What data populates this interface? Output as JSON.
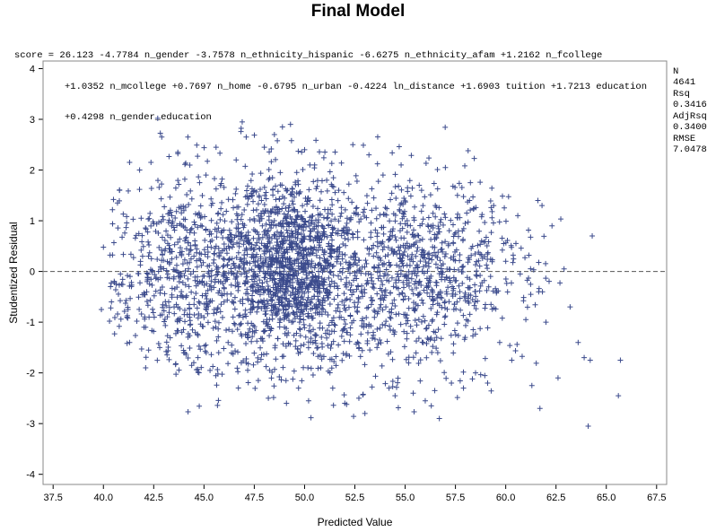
{
  "title": "Final Model",
  "equation": [
    "score = 26.123 -4.7784 n_gender -3.7578 n_ethnicity_hispanic -6.6275 n_ethnicity_afam +1.2162 n_fcollege",
    "+1.0352 n_mcollege +0.7697 n_home -0.6795 n_urban -0.4224 ln_distance +1.6903 tuition +1.7213 education",
    "+0.4298 n_gender_education"
  ],
  "stats": [
    {
      "label": "N",
      "value": "4641"
    },
    {
      "label": "Rsq",
      "value": "0.3416"
    },
    {
      "label": "AdjRsq",
      "value": "0.3400"
    },
    {
      "label": "RMSE",
      "value": "7.0478"
    }
  ],
  "colors": {
    "points": "#3b4a8c",
    "refline": "#555555",
    "frame": "#888888"
  },
  "chart_data": {
    "type": "scatter",
    "marker": "plus",
    "title": "Final Model",
    "xlabel": "Predicted Value",
    "ylabel": "Studentized Residual",
    "xlim": [
      37.0,
      68.0
    ],
    "ylim": [
      -4.2,
      4.15
    ],
    "xticks": [
      "37.5",
      "40.0",
      "42.5",
      "45.0",
      "47.5",
      "50.0",
      "52.5",
      "55.0",
      "57.5",
      "60.0",
      "62.5",
      "65.0",
      "67.5"
    ],
    "yticks": [
      "4",
      "3",
      "2",
      "1",
      "0",
      "-1",
      "-2",
      "-3",
      "-4"
    ],
    "reference_line": {
      "y": 0,
      "style": "dashed"
    },
    "n_points": 4641,
    "points": [
      [
        39.9,
        -0.75
      ],
      [
        40.0,
        0.48
      ],
      [
        40.4,
        -0.6
      ],
      [
        40.7,
        1.35
      ],
      [
        40.8,
        1.6
      ],
      [
        40.9,
        -0.25
      ],
      [
        41.3,
        2.15
      ],
      [
        41.3,
        -1.4
      ],
      [
        41.8,
        2.0
      ],
      [
        42.1,
        -1.9
      ],
      [
        42.7,
        3.02
      ],
      [
        42.8,
        -1.5
      ],
      [
        42.9,
        2.65
      ],
      [
        43.2,
        -0.05
      ],
      [
        43.4,
        1.1
      ],
      [
        43.7,
        2.35
      ],
      [
        43.9,
        -1.2
      ],
      [
        44.2,
        2.65
      ],
      [
        44.5,
        0.3
      ],
      [
        44.7,
        -1.7
      ],
      [
        45.1,
        1.9
      ],
      [
        45.3,
        -1.95
      ],
      [
        45.6,
        2.45
      ],
      [
        45.9,
        0.8
      ],
      [
        46.2,
        -1.4
      ],
      [
        46.6,
        2.2
      ],
      [
        46.9,
        2.95
      ],
      [
        47.1,
        -1.8
      ],
      [
        47.4,
        1.5
      ],
      [
        47.7,
        -2.15
      ],
      [
        48.0,
        2.45
      ],
      [
        48.2,
        -2.5
      ],
      [
        48.5,
        2.7
      ],
      [
        48.7,
        -0.3
      ],
      [
        48.9,
        2.85
      ],
      [
        49.1,
        -2.6
      ],
      [
        49.3,
        2.9
      ],
      [
        49.5,
        1.2
      ],
      [
        49.7,
        -2.3
      ],
      [
        50.0,
        2.4
      ],
      [
        50.2,
        -2.55
      ],
      [
        50.5,
        2.1
      ],
      [
        50.8,
        -1.9
      ],
      [
        51.1,
        1.8
      ],
      [
        51.4,
        -2.3
      ],
      [
        51.7,
        1.6
      ],
      [
        52.0,
        -2.6
      ],
      [
        52.4,
        2.5
      ],
      [
        52.7,
        -2.5
      ],
      [
        53.0,
        -2.8
      ],
      [
        53.2,
        2.3
      ],
      [
        53.6,
        -1.5
      ],
      [
        53.9,
        1.9
      ],
      [
        54.2,
        -2.3
      ],
      [
        54.5,
        -2.45
      ],
      [
        54.8,
        2.1
      ],
      [
        55.1,
        1.0
      ],
      [
        55.4,
        -2.4
      ],
      [
        55.7,
        1.7
      ],
      [
        56.0,
        -2.55
      ],
      [
        56.3,
        -2.65
      ],
      [
        56.5,
        1.3
      ],
      [
        56.7,
        -2.9
      ],
      [
        57.0,
        2.05
      ],
      [
        57.3,
        -2.2
      ],
      [
        57.6,
        1.5
      ],
      [
        57.9,
        -2.3
      ],
      [
        58.2,
        1.4
      ],
      [
        58.5,
        -2.0
      ],
      [
        58.8,
        0.6
      ],
      [
        59.1,
        -2.2
      ],
      [
        59.4,
        1.3
      ],
      [
        59.7,
        -1.4
      ],
      [
        60.0,
        0.2
      ],
      [
        60.3,
        -1.75
      ],
      [
        60.6,
        1.1
      ],
      [
        61.0,
        -0.95
      ],
      [
        61.3,
        -2.25
      ],
      [
        61.6,
        1.4
      ],
      [
        61.7,
        -2.7
      ],
      [
        62.0,
        -1.0
      ],
      [
        62.3,
        0.9
      ],
      [
        62.6,
        -2.1
      ],
      [
        62.9,
        0.05
      ],
      [
        63.2,
        -0.7
      ],
      [
        63.6,
        -1.4
      ],
      [
        63.9,
        -1.7
      ],
      [
        64.1,
        -3.05
      ],
      [
        64.3,
        0.7
      ],
      [
        64.2,
        -1.75
      ],
      [
        65.6,
        -2.45
      ],
      [
        65.7,
        -1.75
      ],
      [
        44.0,
        1.2
      ],
      [
        46.0,
        -0.6
      ],
      [
        47.9,
        0.9
      ],
      [
        49.0,
        -1.1
      ],
      [
        51.0,
        0.4
      ],
      [
        53.5,
        -0.8
      ],
      [
        55.5,
        0.7
      ],
      [
        58.0,
        -0.5
      ]
    ]
  }
}
